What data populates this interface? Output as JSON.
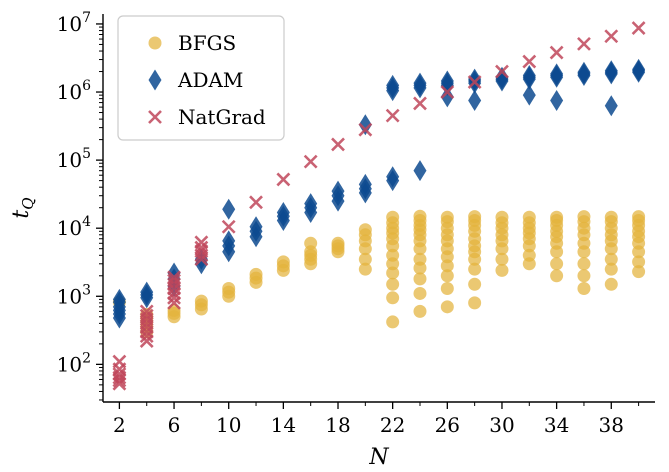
{
  "chart_data": {
    "type": "scatter",
    "xlabel": "N",
    "ylabel": "t",
    "ylabel_sub": "Q",
    "xlim": [
      0.8,
      41.2
    ],
    "xticks": [
      2,
      6,
      10,
      14,
      18,
      22,
      26,
      30,
      34,
      38
    ],
    "ylim": [
      28,
      14000000
    ],
    "yscale": "log",
    "yticks": [
      {
        "value": 100,
        "base": "10",
        "exp": "2"
      },
      {
        "value": 1000,
        "base": "10",
        "exp": "3"
      },
      {
        "value": 10000,
        "base": "10",
        "exp": "4"
      },
      {
        "value": 100000,
        "base": "10",
        "exp": "5"
      },
      {
        "value": 1000000,
        "base": "10",
        "exp": "6"
      },
      {
        "value": 10000000,
        "base": "10",
        "exp": "7"
      }
    ],
    "grid": false,
    "legend_position": "top-left",
    "series": [
      {
        "name": "BFGS",
        "marker": "circle",
        "color": "#E3B33C",
        "points": [
          [
            2,
            820
          ],
          [
            4,
            300
          ],
          [
            4,
            360
          ],
          [
            4,
            420
          ],
          [
            4,
            480
          ],
          [
            4,
            540
          ],
          [
            6,
            500
          ],
          [
            6,
            560
          ],
          [
            6,
            620
          ],
          [
            8,
            650
          ],
          [
            8,
            750
          ],
          [
            8,
            850
          ],
          [
            10,
            1000
          ],
          [
            10,
            1150
          ],
          [
            10,
            1300
          ],
          [
            12,
            1600
          ],
          [
            12,
            1850
          ],
          [
            12,
            2100
          ],
          [
            14,
            2400
          ],
          [
            14,
            2800
          ],
          [
            14,
            3200
          ],
          [
            16,
            3000
          ],
          [
            16,
            3500
          ],
          [
            16,
            4000
          ],
          [
            16,
            4500
          ],
          [
            16,
            6000
          ],
          [
            18,
            4500
          ],
          [
            18,
            5000
          ],
          [
            18,
            5500
          ],
          [
            18,
            6000
          ],
          [
            20,
            2500
          ],
          [
            20,
            3500
          ],
          [
            20,
            5000
          ],
          [
            20,
            6500
          ],
          [
            20,
            8000
          ],
          [
            20,
            9500
          ],
          [
            22,
            420
          ],
          [
            22,
            950
          ],
          [
            22,
            1500
          ],
          [
            22,
            2200
          ],
          [
            22,
            3000
          ],
          [
            22,
            4000
          ],
          [
            22,
            5500
          ],
          [
            22,
            7000
          ],
          [
            22,
            8500
          ],
          [
            22,
            10000
          ],
          [
            22,
            12000
          ],
          [
            22,
            14500
          ],
          [
            24,
            600
          ],
          [
            24,
            1100
          ],
          [
            24,
            1800
          ],
          [
            24,
            2600
          ],
          [
            24,
            3500
          ],
          [
            24,
            5000
          ],
          [
            24,
            6500
          ],
          [
            24,
            8000
          ],
          [
            24,
            9500
          ],
          [
            24,
            11000
          ],
          [
            24,
            13000
          ],
          [
            24,
            15000
          ],
          [
            26,
            700
          ],
          [
            26,
            1300
          ],
          [
            26,
            2000
          ],
          [
            26,
            2800
          ],
          [
            26,
            3800
          ],
          [
            26,
            5000
          ],
          [
            26,
            6500
          ],
          [
            26,
            8000
          ],
          [
            26,
            10000
          ],
          [
            26,
            12500
          ],
          [
            26,
            14500
          ],
          [
            28,
            800
          ],
          [
            28,
            1500
          ],
          [
            28,
            2500
          ],
          [
            28,
            3500
          ],
          [
            28,
            4500
          ],
          [
            28,
            5500
          ],
          [
            28,
            7000
          ],
          [
            28,
            9000
          ],
          [
            28,
            11000
          ],
          [
            28,
            13000
          ],
          [
            28,
            14800
          ],
          [
            30,
            2400
          ],
          [
            30,
            3500
          ],
          [
            30,
            5000
          ],
          [
            30,
            6500
          ],
          [
            30,
            8000
          ],
          [
            30,
            10000
          ],
          [
            30,
            12000
          ],
          [
            30,
            14500
          ],
          [
            32,
            3000
          ],
          [
            32,
            4000
          ],
          [
            32,
            5500
          ],
          [
            32,
            7000
          ],
          [
            32,
            8500
          ],
          [
            32,
            10000
          ],
          [
            32,
            12000
          ],
          [
            32,
            14500
          ],
          [
            34,
            2000
          ],
          [
            34,
            3000
          ],
          [
            34,
            4500
          ],
          [
            34,
            6000
          ],
          [
            34,
            7500
          ],
          [
            34,
            9000
          ],
          [
            34,
            11000
          ],
          [
            34,
            13000
          ],
          [
            34,
            14500
          ],
          [
            36,
            1300
          ],
          [
            36,
            2000
          ],
          [
            36,
            3000
          ],
          [
            36,
            4500
          ],
          [
            36,
            6000
          ],
          [
            36,
            8000
          ],
          [
            36,
            10000
          ],
          [
            36,
            12500
          ],
          [
            36,
            14800
          ],
          [
            38,
            1500
          ],
          [
            38,
            2500
          ],
          [
            38,
            3500
          ],
          [
            38,
            5000
          ],
          [
            38,
            6500
          ],
          [
            38,
            8000
          ],
          [
            38,
            10000
          ],
          [
            38,
            12500
          ],
          [
            38,
            14500
          ],
          [
            40,
            2300
          ],
          [
            40,
            3200
          ],
          [
            40,
            4500
          ],
          [
            40,
            6000
          ],
          [
            40,
            7500
          ],
          [
            40,
            9000
          ],
          [
            40,
            11000
          ],
          [
            40,
            13000
          ],
          [
            40,
            14800
          ]
        ]
      },
      {
        "name": "ADAM",
        "marker": "diamond",
        "color": "#0D4A8F",
        "points": [
          [
            2,
            480
          ],
          [
            2,
            550
          ],
          [
            2,
            620
          ],
          [
            2,
            700
          ],
          [
            2,
            820
          ],
          [
            2,
            900
          ],
          [
            4,
            950
          ],
          [
            4,
            1050
          ],
          [
            4,
            1150
          ],
          [
            6,
            1400
          ],
          [
            6,
            1800
          ],
          [
            6,
            2200
          ],
          [
            8,
            3000
          ],
          [
            8,
            3500
          ],
          [
            10,
            4500
          ],
          [
            10,
            5500
          ],
          [
            10,
            6500
          ],
          [
            10,
            19000
          ],
          [
            12,
            7500
          ],
          [
            12,
            9000
          ],
          [
            12,
            10500
          ],
          [
            14,
            13000
          ],
          [
            14,
            15000
          ],
          [
            14,
            17000
          ],
          [
            16,
            17000
          ],
          [
            16,
            20000
          ],
          [
            16,
            23000
          ],
          [
            18,
            25000
          ],
          [
            18,
            30000
          ],
          [
            18,
            35000
          ],
          [
            20,
            33000
          ],
          [
            20,
            38000
          ],
          [
            20,
            44000
          ],
          [
            20,
            330000
          ],
          [
            22,
            50000
          ],
          [
            22,
            57000
          ],
          [
            22,
            1050000
          ],
          [
            22,
            1150000
          ],
          [
            22,
            1250000
          ],
          [
            24,
            70000
          ],
          [
            24,
            1150000
          ],
          [
            24,
            1250000
          ],
          [
            24,
            1350000
          ],
          [
            26,
            850000
          ],
          [
            26,
            1250000
          ],
          [
            26,
            1350000
          ],
          [
            26,
            1450000
          ],
          [
            28,
            750000
          ],
          [
            28,
            1350000
          ],
          [
            28,
            1450000
          ],
          [
            28,
            1550000
          ],
          [
            30,
            1450000
          ],
          [
            30,
            1550000
          ],
          [
            30,
            1650000
          ],
          [
            32,
            900000
          ],
          [
            32,
            1550000
          ],
          [
            32,
            1650000
          ],
          [
            32,
            1750000
          ],
          [
            34,
            750000
          ],
          [
            34,
            1650000
          ],
          [
            34,
            1750000
          ],
          [
            34,
            1850000
          ],
          [
            36,
            1750000
          ],
          [
            36,
            1850000
          ],
          [
            36,
            1950000
          ],
          [
            38,
            630000
          ],
          [
            38,
            1850000
          ],
          [
            38,
            1950000
          ],
          [
            38,
            2050000
          ],
          [
            40,
            1950000
          ],
          [
            40,
            2050000
          ],
          [
            40,
            2150000
          ]
        ]
      },
      {
        "name": "NatGrad",
        "marker": "x",
        "color": "#C0475B",
        "points": [
          [
            2,
            52
          ],
          [
            2,
            58
          ],
          [
            2,
            64
          ],
          [
            2,
            72
          ],
          [
            2,
            85
          ],
          [
            2,
            110
          ],
          [
            4,
            220
          ],
          [
            4,
            260
          ],
          [
            4,
            300
          ],
          [
            4,
            350
          ],
          [
            4,
            400
          ],
          [
            4,
            460
          ],
          [
            4,
            520
          ],
          [
            4,
            600
          ],
          [
            6,
            800
          ],
          [
            6,
            950
          ],
          [
            6,
            1100
          ],
          [
            6,
            1300
          ],
          [
            6,
            1500
          ],
          [
            6,
            1700
          ],
          [
            6,
            1900
          ],
          [
            8,
            3500
          ],
          [
            8,
            4000
          ],
          [
            8,
            4600
          ],
          [
            8,
            5200
          ],
          [
            8,
            6200
          ],
          [
            10,
            10500
          ],
          [
            12,
            24000
          ],
          [
            14,
            52000
          ],
          [
            16,
            95000
          ],
          [
            18,
            170000
          ],
          [
            20,
            280000
          ],
          [
            22,
            450000
          ],
          [
            24,
            680000
          ],
          [
            26,
            1000000
          ],
          [
            28,
            1400000
          ],
          [
            30,
            2000000
          ],
          [
            32,
            2800000
          ],
          [
            34,
            3800000
          ],
          [
            36,
            5100000
          ],
          [
            38,
            6600000
          ],
          [
            40,
            8700000
          ]
        ]
      }
    ]
  }
}
